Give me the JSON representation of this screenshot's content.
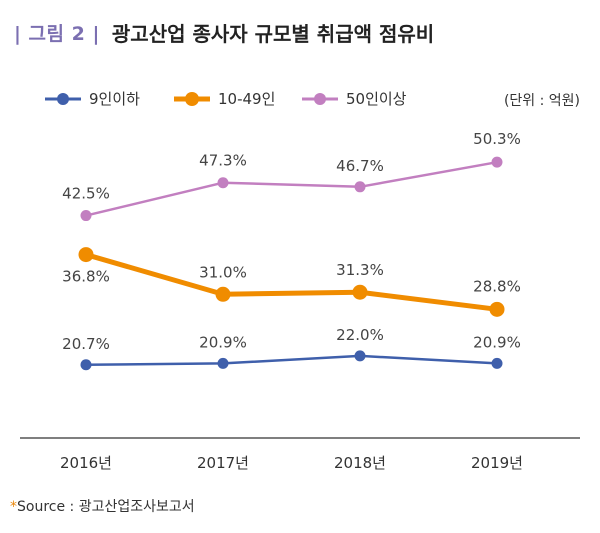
{
  "figure": {
    "label": "| 그림 2 |",
    "title": "광고산업 종사자 규모별 취급액 점유비",
    "unit": "(단위 : 억원)",
    "source_mark": "*",
    "source_text": "Source : 광고산업조사보고서"
  },
  "chart_data": {
    "type": "line",
    "title": "광고산업 종사자 규모별 취급액 점유비",
    "xlabel": "",
    "ylabel": "",
    "x": [
      "2016년",
      "2017년",
      "2018년",
      "2019년"
    ],
    "ylim": [
      10,
      55
    ],
    "grid": false,
    "legend_position": "top-left",
    "series": [
      {
        "name": "9인이하",
        "values": [
          20.7,
          20.9,
          22.0,
          20.9
        ],
        "labels": [
          "20.7%",
          "20.9%",
          "22.0%",
          "20.9%"
        ],
        "color": "#3f5fab"
      },
      {
        "name": "10-49인",
        "values": [
          36.8,
          31.0,
          31.3,
          28.8
        ],
        "labels": [
          "36.8%",
          "31.0%",
          "31.3%",
          "28.8%"
        ],
        "color": "#f08c00"
      },
      {
        "name": "50인이상",
        "values": [
          42.5,
          47.3,
          46.7,
          50.3
        ],
        "labels": [
          "42.5%",
          "47.3%",
          "46.7%",
          "50.3%"
        ],
        "color": "#c27fc0"
      }
    ]
  }
}
